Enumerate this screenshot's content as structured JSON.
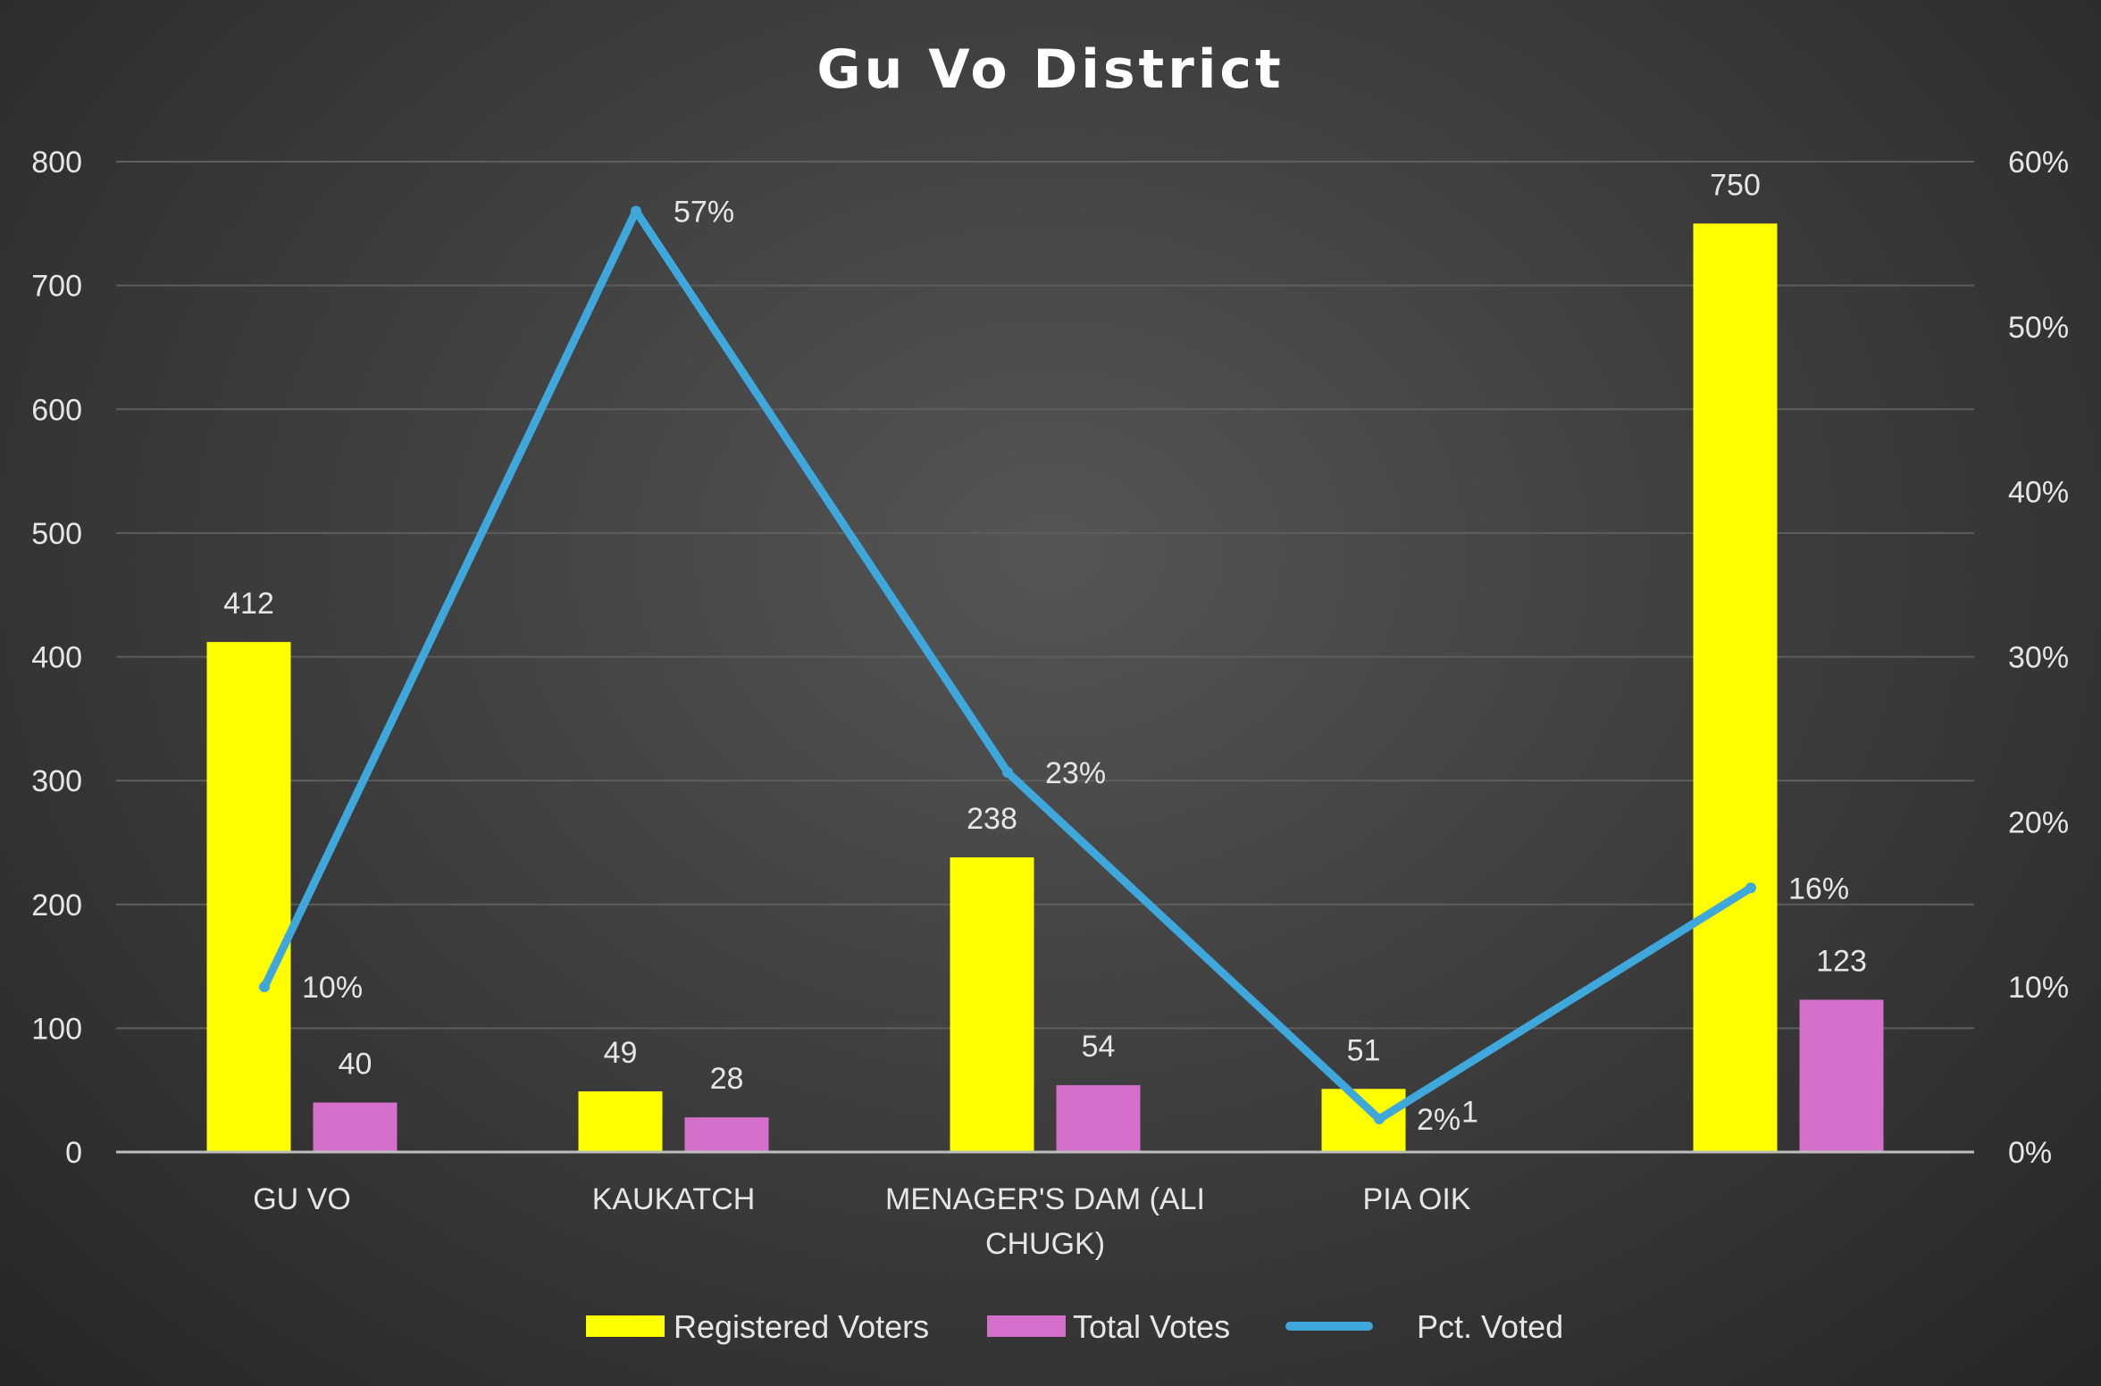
{
  "chart_data": {
    "type": "bar",
    "title": "Gu Vo District",
    "categories": [
      [
        "GU VO"
      ],
      [
        "KAUKATCH"
      ],
      [
        "MENAGER'S DAM (ALI",
        "CHUGK)"
      ],
      [
        "PIA OIK"
      ],
      [
        ""
      ]
    ],
    "series": [
      {
        "name": "Registered Voters",
        "type": "bar",
        "axis": "left",
        "color": "#ffff00",
        "values": [
          412,
          49,
          238,
          51,
          750
        ],
        "labels": [
          "412",
          "49",
          "238",
          "51",
          "750"
        ]
      },
      {
        "name": "Total Votes",
        "type": "bar",
        "axis": "left",
        "color": "#d46fcb",
        "values": [
          40,
          28,
          54,
          1,
          123
        ],
        "labels": [
          "40",
          "28",
          "54",
          "1",
          "123"
        ]
      },
      {
        "name": "Pct. Voted",
        "type": "line",
        "axis": "right",
        "color": "#3ea8dc",
        "values": [
          0.1,
          0.57,
          0.23,
          0.02,
          0.16
        ],
        "labels": [
          "10%",
          "57%",
          "23%",
          "2%",
          "16%"
        ]
      }
    ],
    "ylim": [
      0,
      800
    ],
    "yticks": [
      "0",
      "100",
      "200",
      "300",
      "400",
      "500",
      "600",
      "700",
      "800"
    ],
    "y2lim": [
      0,
      0.6
    ],
    "y2ticks": [
      "0%",
      "10%",
      "20%",
      "30%",
      "40%",
      "50%",
      "60%"
    ],
    "grid": true,
    "legend": "bottom"
  }
}
